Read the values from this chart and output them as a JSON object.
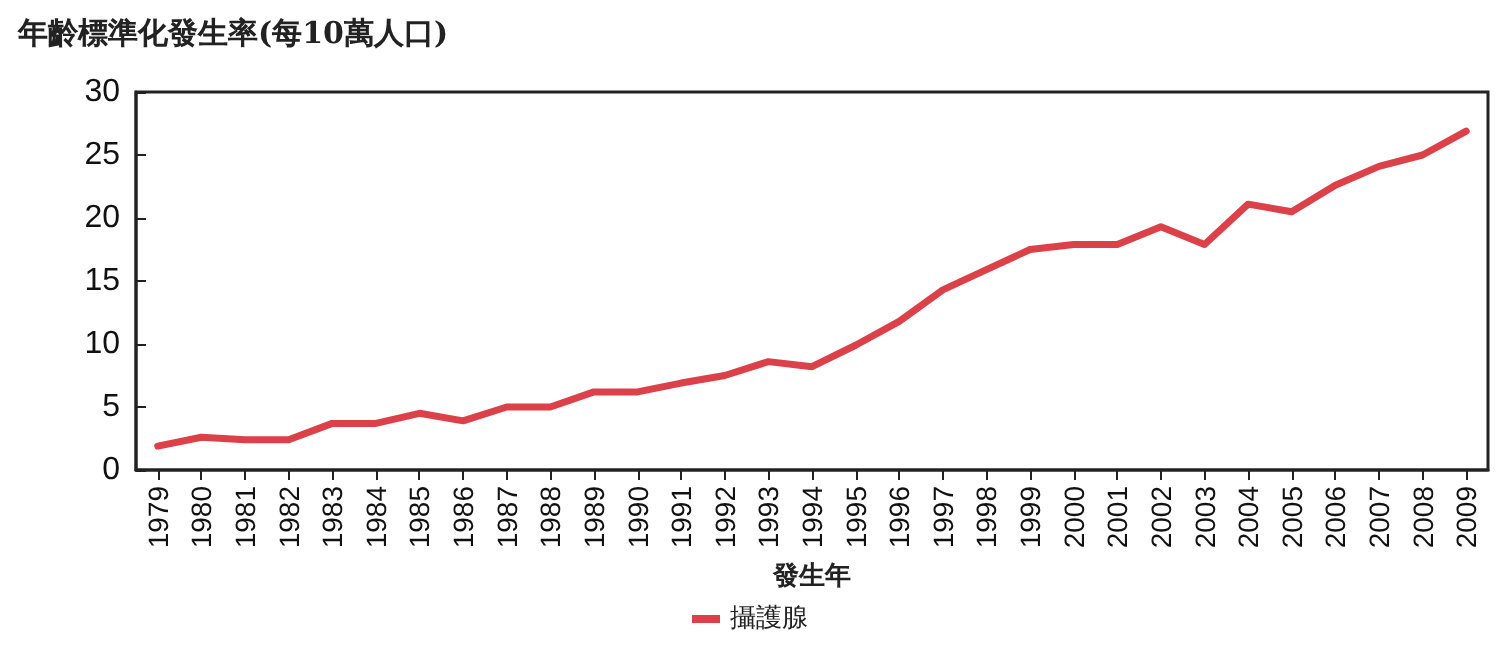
{
  "chart_data": {
    "type": "line",
    "title": "年齡標準化發生率(每10萬人口)",
    "xlabel": "發生年",
    "categories": [
      "1979",
      "1980",
      "1981",
      "1982",
      "1983",
      "1984",
      "1985",
      "1986",
      "1987",
      "1988",
      "1989",
      "1990",
      "1991",
      "1992",
      "1993",
      "1994",
      "1995",
      "1996",
      "1997",
      "1998",
      "1999",
      "2000",
      "2001",
      "2002",
      "2003",
      "2004",
      "2005",
      "2006",
      "2007",
      "2008",
      "2009"
    ],
    "series": [
      {
        "name": "攝護腺",
        "color": "#dc4048",
        "values": [
          1.9,
          2.6,
          2.4,
          2.4,
          3.7,
          3.7,
          4.5,
          3.9,
          5.0,
          5.0,
          6.2,
          6.2,
          6.9,
          7.5,
          8.6,
          8.2,
          9.9,
          11.8,
          14.3,
          15.9,
          17.5,
          17.9,
          17.9,
          19.3,
          17.9,
          21.1,
          20.5,
          22.6,
          24.1,
          25.0,
          26.9
        ]
      }
    ],
    "ylim": [
      0,
      30
    ],
    "yticks": [
      0,
      5,
      10,
      15,
      20,
      25,
      30
    ],
    "grid": false,
    "legend": "bottom",
    "marker": "none",
    "line_style": "solid"
  }
}
